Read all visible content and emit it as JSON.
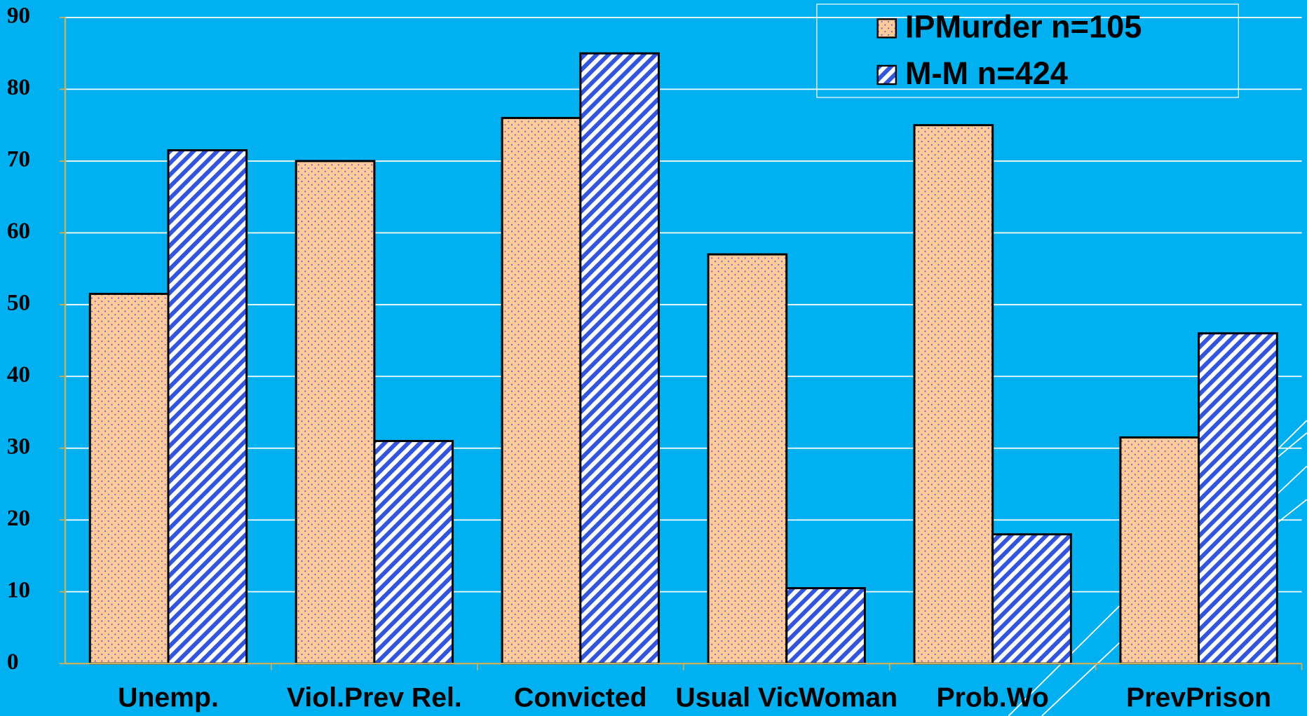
{
  "chart_data": {
    "type": "bar",
    "categories": [
      "Unemp.",
      "Viol.Prev Rel.",
      "Convicted",
      "Usual VicWoman",
      "Prob.Wo",
      "PrevPrison"
    ],
    "series": [
      {
        "name": "IPMurder n=105",
        "color": "#ffcc99",
        "pattern": "dots",
        "values": [
          51.5,
          70,
          76,
          57,
          75,
          31.5
        ]
      },
      {
        "name": "M-M n=424",
        "color": "#3355dd",
        "pattern": "stripes",
        "values": [
          71.5,
          31,
          85,
          10.5,
          18,
          46
        ]
      }
    ],
    "ylim": [
      0,
      90
    ],
    "yticks": [
      0,
      10,
      20,
      30,
      40,
      50,
      60,
      70,
      80,
      90
    ],
    "grid": true,
    "legend": "top-right"
  }
}
